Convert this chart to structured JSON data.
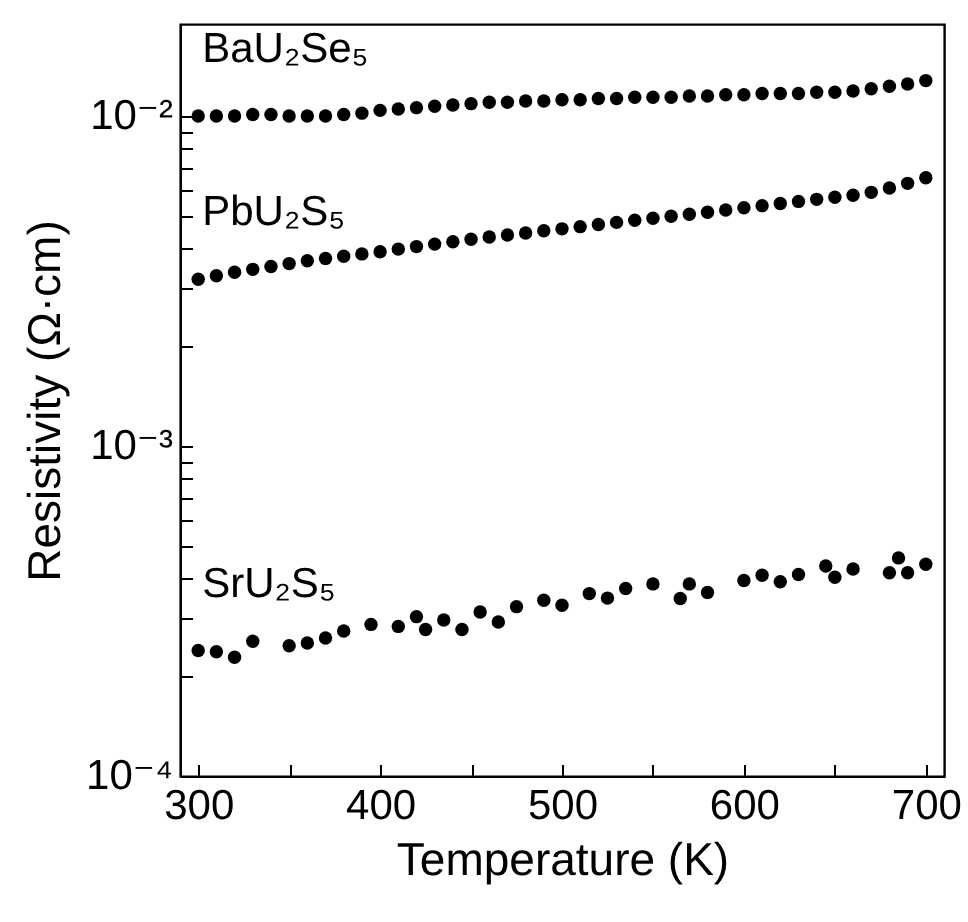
{
  "chart_data": {
    "type": "scatter",
    "xlabel": "Temperature (K)",
    "ylabel": "Resistivity (Ω·cm)",
    "log": "y",
    "marker": "circle",
    "grid": false,
    "xlim": [
      290,
      710
    ],
    "xticks": [
      300,
      {
        "value": 350,
        "label": null
      },
      400,
      {
        "value": 450,
        "label": null
      },
      500,
      {
        "value": 550,
        "label": null
      },
      600,
      {
        "value": 650,
        "label": null
      },
      700
    ],
    "ylim": [
      0.0001,
      0.019
    ],
    "yticks": [
      {
        "value": 0.0001,
        "label": "10⁻⁴"
      },
      {
        "value": 0.0002,
        "label": null
      },
      {
        "value": 0.0003,
        "label": null
      },
      {
        "value": 0.0004,
        "label": null
      },
      {
        "value": 0.0005,
        "label": null
      },
      {
        "value": 0.0006,
        "label": null
      },
      {
        "value": 0.0007,
        "label": null
      },
      {
        "value": 0.0008,
        "label": null
      },
      {
        "value": 0.0009,
        "label": null
      },
      {
        "value": 0.001,
        "label": "10⁻³"
      },
      {
        "value": 0.002,
        "label": null
      },
      {
        "value": 0.003,
        "label": null
      },
      {
        "value": 0.004,
        "label": null
      },
      {
        "value": 0.005,
        "label": null
      },
      {
        "value": 0.006,
        "label": null
      },
      {
        "value": 0.007,
        "label": null
      },
      {
        "value": 0.008,
        "label": null
      },
      {
        "value": 0.009,
        "label": null
      },
      {
        "value": 0.01,
        "label": "10⁻²"
      }
    ],
    "series": [
      {
        "name": "BaU₂Se₅",
        "color": "#000000",
        "x": [
          300,
          310,
          320,
          330,
          340,
          350,
          360,
          370,
          380,
          390,
          400,
          410,
          420,
          430,
          440,
          450,
          460,
          470,
          480,
          490,
          500,
          510,
          520,
          530,
          540,
          550,
          560,
          570,
          580,
          590,
          600,
          610,
          620,
          630,
          640,
          650,
          660,
          670,
          680,
          690,
          700
        ],
        "values": [
          0.01,
          0.01,
          0.01,
          0.0101,
          0.0101,
          0.01,
          0.01,
          0.01,
          0.0101,
          0.0102,
          0.0104,
          0.0105,
          0.0106,
          0.0107,
          0.0108,
          0.0109,
          0.011,
          0.011,
          0.0111,
          0.0111,
          0.0112,
          0.0112,
          0.0113,
          0.0113,
          0.0114,
          0.0114,
          0.0114,
          0.0115,
          0.0115,
          0.0116,
          0.0116,
          0.0117,
          0.0117,
          0.0117,
          0.0118,
          0.0118,
          0.0119,
          0.0121,
          0.0123,
          0.0125,
          0.0128
        ]
      },
      {
        "name": "PbU₂S₅",
        "color": "#000000",
        "x": [
          300,
          310,
          320,
          330,
          340,
          350,
          360,
          370,
          380,
          390,
          400,
          410,
          420,
          430,
          440,
          450,
          460,
          470,
          480,
          490,
          500,
          510,
          520,
          530,
          540,
          550,
          560,
          570,
          580,
          590,
          600,
          610,
          620,
          630,
          640,
          650,
          660,
          670,
          680,
          690,
          700
        ],
        "values": [
          0.0032,
          0.00328,
          0.00336,
          0.00343,
          0.0035,
          0.00357,
          0.00364,
          0.0037,
          0.00376,
          0.00382,
          0.00388,
          0.00395,
          0.00402,
          0.00409,
          0.00416,
          0.00423,
          0.0043,
          0.00436,
          0.00442,
          0.00449,
          0.00455,
          0.00462,
          0.00469,
          0.00476,
          0.00483,
          0.0049,
          0.00497,
          0.00504,
          0.00511,
          0.00519,
          0.00527,
          0.00535,
          0.00543,
          0.00551,
          0.00559,
          0.00567,
          0.00575,
          0.00587,
          0.00605,
          0.00625,
          0.0065
        ]
      },
      {
        "name": "SrU₂S₅",
        "color": "#000000",
        "x": [
          300,
          310,
          320,
          330,
          350,
          360,
          370,
          380,
          395,
          410,
          420,
          425,
          435,
          445,
          455,
          465,
          475,
          490,
          500,
          515,
          525,
          535,
          550,
          565,
          570,
          580,
          600,
          610,
          620,
          630,
          645,
          650,
          660,
          680,
          685,
          690,
          700
        ],
        "values": [
          0.00024,
          0.000238,
          0.000229,
          0.000256,
          0.000248,
          0.000253,
          0.000262,
          0.000275,
          0.000288,
          0.000284,
          0.000304,
          0.000278,
          0.000297,
          0.000278,
          0.000314,
          0.000293,
          0.000326,
          0.000341,
          0.000329,
          0.000357,
          0.000346,
          0.00037,
          0.000382,
          0.000345,
          0.000382,
          0.00036,
          0.000391,
          0.000406,
          0.000388,
          0.000408,
          0.000433,
          0.0004,
          0.000424,
          0.000413,
          0.000458,
          0.000413,
          0.000438
        ]
      }
    ]
  }
}
